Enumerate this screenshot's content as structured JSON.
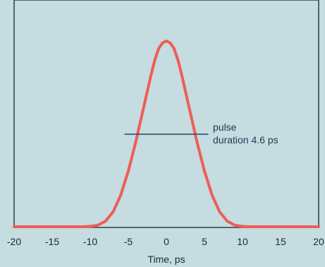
{
  "colors": {
    "background": "#c5dce0",
    "frame": "#2e3f47",
    "curve": "#ee5e55",
    "annotation": "#1e4a63",
    "text": "#1c2a30"
  },
  "chart_data": {
    "type": "line",
    "xlabel": "Time, ps",
    "ylabel": "",
    "title": "",
    "xlim": [
      -20,
      20
    ],
    "ylim": [
      0,
      1
    ],
    "xticks": [
      -20,
      -15,
      -10,
      -5,
      0,
      5,
      10,
      15,
      20
    ],
    "grid": false,
    "series": [
      {
        "x": [
          -20,
          -18,
          -16,
          -14,
          -12,
          -11,
          -10,
          -9,
          -8,
          -7,
          -6,
          -5,
          -4.5,
          -4,
          -3.5,
          -3,
          -2.5,
          -2,
          -1.5,
          -1,
          -0.5,
          0,
          0.5,
          1,
          1.5,
          2,
          2.5,
          3,
          3.5,
          4,
          4.5,
          5,
          6,
          7,
          8,
          9,
          10,
          11,
          12,
          14,
          16,
          18,
          20
        ],
        "y": [
          0.0,
          0.0,
          0.0,
          0.0,
          0.0,
          0.0,
          0.002,
          0.008,
          0.03,
          0.08,
          0.17,
          0.3,
          0.38,
          0.46,
          0.55,
          0.64,
          0.73,
          0.82,
          0.9,
          0.96,
          0.99,
          1.0,
          0.99,
          0.96,
          0.9,
          0.82,
          0.73,
          0.64,
          0.55,
          0.46,
          0.38,
          0.3,
          0.17,
          0.08,
          0.03,
          0.008,
          0.002,
          0.0,
          0.0,
          0.0,
          0.0,
          0.0,
          0.0
        ]
      }
    ],
    "annotations": [
      {
        "text_lines": [
          "pulse",
          "duration 4.6 ps"
        ],
        "x_start": -5.5,
        "x_end": 5.5,
        "y": 0.5
      }
    ]
  }
}
